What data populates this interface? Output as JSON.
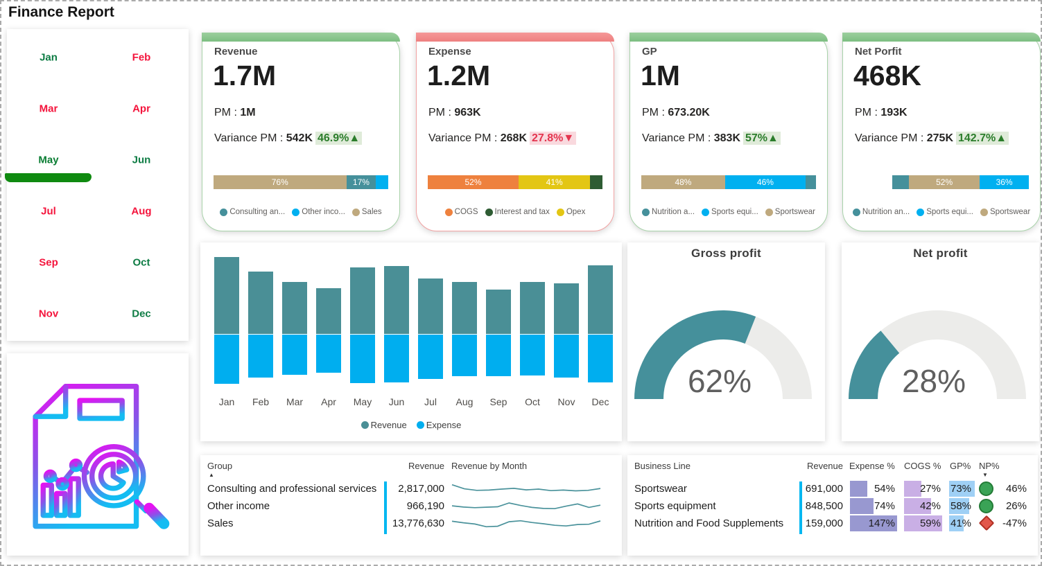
{
  "title": "Finance Report",
  "palette": {
    "teal": "#45909B",
    "blue": "#00B0F0",
    "tan": "#BFA97E",
    "orange": "#EE813E",
    "yellow": "#E3C614",
    "dark_green": "#2E5C33",
    "good_text": "#2B7D2B",
    "good_bg": "#DFEBD9",
    "bad_text": "#E4354F",
    "bad_bg": "#F9D9DE",
    "gauge_fill": "#45909B",
    "gauge_track": "#ECECEA",
    "month_green": "#0E7C44",
    "month_red": "#F4143C",
    "month_selected": "#0A7D33",
    "month_underline": "#0F8A10",
    "green_border": "#A9D3AA",
    "green_strip_top": "#9CCF9E",
    "green_strip_bottom": "#7CBE81",
    "red_border": "#F2A3A3",
    "red_strip_top": "#F59898",
    "red_strip_bottom": "#EE7F7F",
    "cyan_rule": "#00B7F1",
    "expense_bar": "#9898D0",
    "cogs_bar": "#C9AFE5",
    "gp_bar": "#9FD0F5",
    "np_good": "#3AA356",
    "np_good_border": "#237B36",
    "np_bad": "#E2574B",
    "np_bad_border": "#B03024",
    "spark": "#4A929B",
    "bar_revenue": "#4A8F96",
    "bar_expense": "#00AEEF"
  },
  "month_slicer": {
    "selected": "May",
    "months": [
      {
        "label": "Jan",
        "state": "green"
      },
      {
        "label": "Feb",
        "state": "red"
      },
      {
        "label": "Mar",
        "state": "red"
      },
      {
        "label": "Apr",
        "state": "red"
      },
      {
        "label": "May",
        "state": "selected"
      },
      {
        "label": "Jun",
        "state": "green"
      },
      {
        "label": "Jul",
        "state": "red"
      },
      {
        "label": "Aug",
        "state": "red"
      },
      {
        "label": "Sep",
        "state": "red"
      },
      {
        "label": "Oct",
        "state": "green"
      },
      {
        "label": "Nov",
        "state": "red"
      },
      {
        "label": "Dec",
        "state": "green"
      }
    ]
  },
  "labels": {
    "pm": "PM :",
    "variance": "Variance PM :",
    "up_arrow": "▲",
    "down_arrow": "▼"
  },
  "kpi_cards": [
    {
      "title": "Revenue",
      "value": "1.7M",
      "pm": "1M",
      "variance": "542K",
      "variance_pct": "46.9%",
      "trend": "up",
      "theme": "green",
      "bar_offset_pct": 0,
      "bar_segments": [
        {
          "name": "Sales",
          "pct": 76,
          "label": "76%",
          "color_key": "tan"
        },
        {
          "name": "Consulting and professional services",
          "pct": 17,
          "label": "17%",
          "color_key": "teal"
        },
        {
          "name": "Other income",
          "pct": 7,
          "label": "",
          "color_key": "blue"
        }
      ],
      "legend": [
        {
          "label": "Consulting an...",
          "color_key": "teal"
        },
        {
          "label": "Other inco...",
          "color_key": "blue"
        },
        {
          "label": "Sales",
          "color_key": "tan"
        }
      ]
    },
    {
      "title": "Expense",
      "value": "1.2M",
      "pm": "963K",
      "variance": "268K",
      "variance_pct": "27.8%",
      "trend": "down",
      "theme": "red",
      "bar_offset_pct": 0,
      "bar_segments": [
        {
          "name": "COGS",
          "pct": 52,
          "label": "52%",
          "color_key": "orange"
        },
        {
          "name": "Opex",
          "pct": 41,
          "label": "41%",
          "color_key": "yellow"
        },
        {
          "name": "Interest and tax",
          "pct": 7,
          "label": "",
          "color_key": "dark_green"
        }
      ],
      "legend": [
        {
          "label": "COGS",
          "color_key": "orange"
        },
        {
          "label": "Interest and tax",
          "color_key": "dark_green"
        },
        {
          "label": "Opex",
          "color_key": "yellow"
        }
      ]
    },
    {
      "title": "GP",
      "value": "1M",
      "pm": "673.20K",
      "variance": "383K",
      "variance_pct": "57%",
      "trend": "up",
      "theme": "green",
      "bar_offset_pct": 0,
      "bar_segments": [
        {
          "name": "Sportswear",
          "pct": 48,
          "label": "48%",
          "color_key": "tan"
        },
        {
          "name": "Sports equipment",
          "pct": 46,
          "label": "46%",
          "color_key": "blue"
        },
        {
          "name": "Nutrition and Food Supplements",
          "pct": 6,
          "label": "",
          "color_key": "teal"
        }
      ],
      "legend": [
        {
          "label": "Nutrition a...",
          "color_key": "teal"
        },
        {
          "label": "Sports equi...",
          "color_key": "blue"
        },
        {
          "label": "Sportswear",
          "color_key": "tan"
        }
      ]
    },
    {
      "title": "Net Porfit",
      "value": "468K",
      "pm": "193K",
      "variance": "275K",
      "variance_pct": "142.7%",
      "trend": "up",
      "theme": "green",
      "bar_offset_pct": 22,
      "bar_segments": [
        {
          "name": "Nutrition and Food Supplements",
          "pct": 12,
          "label": "",
          "color_key": "teal"
        },
        {
          "name": "Sportswear",
          "pct": 52,
          "label": "52%",
          "color_key": "tan"
        },
        {
          "name": "Sports equipment",
          "pct": 36,
          "label": "36%",
          "color_key": "blue"
        }
      ],
      "legend": [
        {
          "label": "Nutrition an...",
          "color_key": "teal"
        },
        {
          "label": "Sports equi...",
          "color_key": "blue"
        },
        {
          "label": "Sportswear",
          "color_key": "tan"
        }
      ]
    }
  ],
  "chart_data": [
    {
      "id": "revenue_expense_by_month",
      "type": "bar",
      "title": "",
      "categories": [
        "Jan",
        "Feb",
        "Mar",
        "Apr",
        "May",
        "Jun",
        "Jul",
        "Aug",
        "Sep",
        "Oct",
        "Nov",
        "Dec"
      ],
      "series": [
        {
          "name": "Revenue",
          "direction": "up",
          "values": [
            111,
            90,
            75,
            66,
            96,
            98,
            80,
            75,
            64,
            75,
            73,
            99
          ]
        },
        {
          "name": "Expense",
          "direction": "down",
          "values": [
            71,
            62,
            58,
            55,
            70,
            69,
            64,
            60,
            60,
            59,
            62,
            69
          ]
        }
      ],
      "value_note": "relative bar lengths (axis unlabeled in source)",
      "legend_position": "bottom",
      "axes_hidden": true
    },
    {
      "id": "gross_profit_gauge",
      "type": "gauge",
      "title": "Gross profit",
      "value_pct": 62,
      "label": "62%"
    },
    {
      "id": "net_profit_gauge",
      "type": "gauge",
      "title": "Net profit",
      "value_pct": 28,
      "label": "28%"
    },
    {
      "id": "revenue_by_group",
      "type": "table",
      "columns": [
        "Group",
        "Revenue",
        "Revenue by Month"
      ],
      "sort": {
        "column": "Group",
        "direction": "asc"
      },
      "rows": [
        {
          "group": "Consulting and professional services",
          "revenue": "2,817,000",
          "sparkline": [
            85,
            52,
            40,
            42,
            50,
            56,
            44,
            50,
            38,
            42,
            36,
            40,
            55
          ]
        },
        {
          "group": "Other income",
          "revenue": "966,190",
          "sparkline": [
            55,
            45,
            40,
            44,
            47,
            78,
            58,
            42,
            34,
            32,
            52,
            70,
            42,
            60
          ]
        },
        {
          "group": "Sales",
          "revenue": "13,776,630",
          "sparkline": [
            70,
            58,
            48,
            26,
            30,
            66,
            74,
            60,
            50,
            38,
            32,
            44,
            46,
            72
          ]
        }
      ]
    },
    {
      "id": "business_line_table",
      "type": "table",
      "columns": [
        "Business Line",
        "Revenue",
        "Expense %",
        "COGS %",
        "GP%",
        "NP%"
      ],
      "sort": {
        "column": "NP%",
        "direction": "desc"
      },
      "rows": [
        {
          "business_line": "Sportswear",
          "revenue": "691,000",
          "expense_pct": "54%",
          "cogs_pct": "27%",
          "gp_pct": "73%",
          "np_pct": "46%",
          "np_status": "good"
        },
        {
          "business_line": "Sports equipment",
          "revenue": "848,500",
          "expense_pct": "74%",
          "cogs_pct": "42%",
          "gp_pct": "58%",
          "np_pct": "26%",
          "np_status": "good"
        },
        {
          "business_line": "Nutrition and Food Supplements",
          "revenue": "159,000",
          "expense_pct": "147%",
          "cogs_pct": "59%",
          "gp_pct": "41%",
          "np_pct": "-47%",
          "np_status": "bad"
        }
      ]
    }
  ]
}
